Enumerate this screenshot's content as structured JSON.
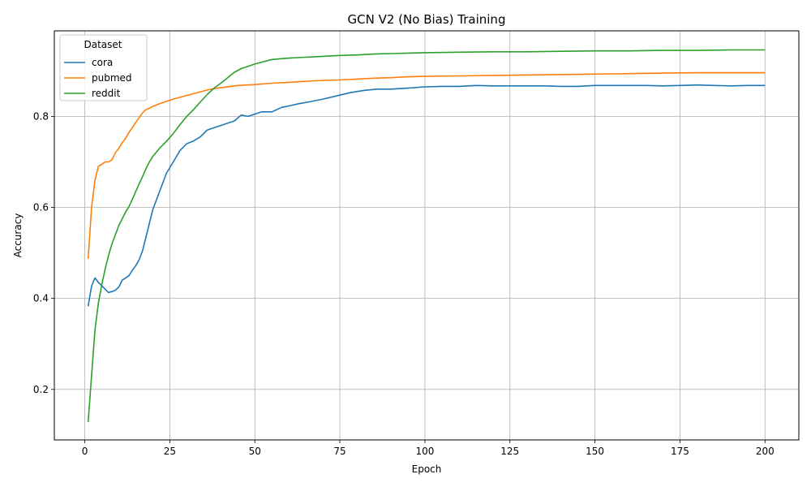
{
  "chart_data": {
    "type": "line",
    "title": "GCN V2 (No Bias) Training",
    "xlabel": "Epoch",
    "ylabel": "Accuracy",
    "xlim": [
      -8.95,
      209.95
    ],
    "ylim": [
      0.089,
      0.988
    ],
    "xticks": [
      0,
      25,
      50,
      75,
      100,
      125,
      150,
      175,
      200
    ],
    "yticks": [
      0.2,
      0.4,
      0.6,
      0.8
    ],
    "grid": true,
    "legend": {
      "title": "Dataset",
      "position": "top-left"
    },
    "series": [
      {
        "name": "cora",
        "color": "#1f77b4",
        "x": [
          1,
          2,
          3,
          4,
          5,
          6,
          7,
          8,
          9,
          10,
          11,
          12,
          13,
          14,
          15,
          16,
          17,
          18,
          19,
          20,
          22,
          24,
          26,
          28,
          30,
          32,
          34,
          36,
          38,
          40,
          42,
          44,
          46,
          48,
          50,
          52,
          55,
          58,
          60,
          63,
          66,
          70,
          74,
          78,
          82,
          86,
          90,
          95,
          100,
          105,
          110,
          115,
          120,
          125,
          130,
          135,
          140,
          145,
          150,
          155,
          160,
          165,
          170,
          175,
          180,
          185,
          190,
          195,
          200
        ],
        "y": [
          0.383,
          0.427,
          0.445,
          0.435,
          0.428,
          0.42,
          0.413,
          0.415,
          0.418,
          0.425,
          0.44,
          0.445,
          0.45,
          0.462,
          0.472,
          0.485,
          0.505,
          0.535,
          0.565,
          0.595,
          0.635,
          0.675,
          0.7,
          0.725,
          0.74,
          0.746,
          0.755,
          0.77,
          0.775,
          0.78,
          0.785,
          0.79,
          0.803,
          0.8,
          0.805,
          0.81,
          0.81,
          0.82,
          0.823,
          0.828,
          0.832,
          0.838,
          0.845,
          0.852,
          0.857,
          0.86,
          0.86,
          0.862,
          0.865,
          0.866,
          0.866,
          0.868,
          0.867,
          0.867,
          0.867,
          0.867,
          0.866,
          0.866,
          0.868,
          0.868,
          0.868,
          0.868,
          0.867,
          0.868,
          0.869,
          0.868,
          0.867,
          0.868,
          0.868
        ]
      },
      {
        "name": "pubmed",
        "color": "#ff7f0e",
        "x": [
          1,
          2,
          3,
          4,
          5,
          6,
          7,
          8,
          9,
          10,
          11,
          12,
          13,
          14,
          15,
          16,
          17,
          18,
          19,
          20,
          22,
          24,
          26,
          28,
          30,
          32,
          34,
          36,
          38,
          40,
          45,
          50,
          55,
          60,
          65,
          70,
          75,
          80,
          85,
          90,
          95,
          100,
          110,
          120,
          130,
          140,
          150,
          160,
          170,
          180,
          190,
          200
        ],
        "y": [
          0.487,
          0.6,
          0.66,
          0.69,
          0.695,
          0.7,
          0.7,
          0.705,
          0.72,
          0.73,
          0.742,
          0.752,
          0.765,
          0.775,
          0.787,
          0.797,
          0.808,
          0.815,
          0.818,
          0.822,
          0.828,
          0.833,
          0.838,
          0.842,
          0.846,
          0.85,
          0.854,
          0.858,
          0.861,
          0.863,
          0.868,
          0.87,
          0.873,
          0.875,
          0.877,
          0.879,
          0.88,
          0.882,
          0.884,
          0.885,
          0.887,
          0.888,
          0.889,
          0.89,
          0.891,
          0.892,
          0.893,
          0.894,
          0.895,
          0.896,
          0.896,
          0.896
        ]
      },
      {
        "name": "reddit",
        "color": "#2ca02c",
        "x": [
          1,
          2,
          3,
          4,
          5,
          6,
          7,
          8,
          9,
          10,
          11,
          12,
          13,
          14,
          15,
          16,
          17,
          18,
          19,
          20,
          22,
          24,
          26,
          28,
          30,
          32,
          34,
          36,
          38,
          40,
          42,
          44,
          46,
          48,
          50,
          55,
          60,
          65,
          70,
          75,
          80,
          85,
          90,
          100,
          110,
          120,
          130,
          140,
          150,
          160,
          170,
          180,
          190,
          200
        ],
        "y": [
          0.128,
          0.23,
          0.33,
          0.39,
          0.43,
          0.465,
          0.495,
          0.52,
          0.54,
          0.56,
          0.575,
          0.59,
          0.602,
          0.618,
          0.635,
          0.652,
          0.668,
          0.685,
          0.7,
          0.712,
          0.73,
          0.745,
          0.762,
          0.782,
          0.8,
          0.815,
          0.832,
          0.848,
          0.862,
          0.873,
          0.885,
          0.897,
          0.905,
          0.91,
          0.915,
          0.925,
          0.928,
          0.93,
          0.932,
          0.934,
          0.935,
          0.937,
          0.938,
          0.94,
          0.941,
          0.942,
          0.942,
          0.943,
          0.944,
          0.944,
          0.945,
          0.945,
          0.946,
          0.946
        ]
      }
    ]
  }
}
